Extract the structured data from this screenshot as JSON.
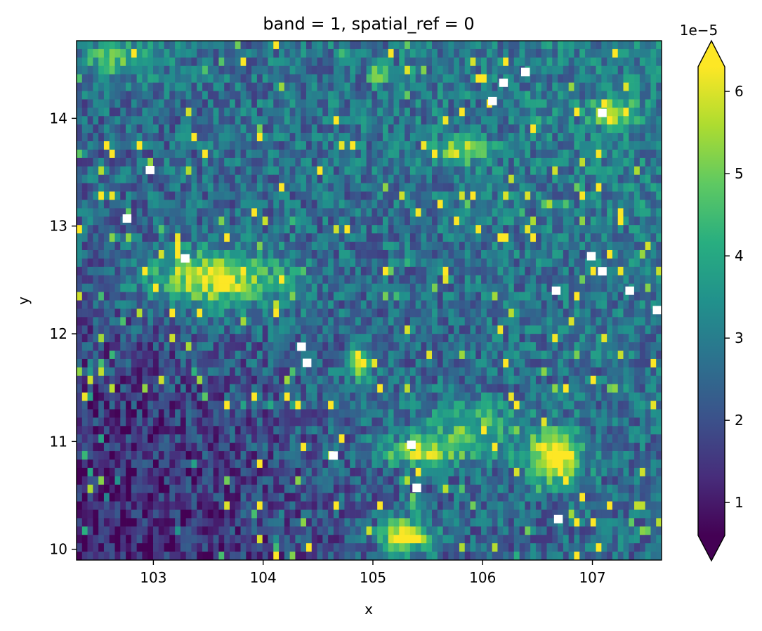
{
  "chart_data": {
    "type": "heatmap",
    "title": "band = 1, spatial_ref = 0",
    "xlabel": "x",
    "ylabel": "y",
    "xlim": [
      102.3,
      107.63
    ],
    "ylim": [
      9.9,
      14.72
    ],
    "x_ticks": [
      {
        "value": 103,
        "label": "103"
      },
      {
        "value": 104,
        "label": "104"
      },
      {
        "value": 105,
        "label": "105"
      },
      {
        "value": 106,
        "label": "106"
      },
      {
        "value": 107,
        "label": "107"
      }
    ],
    "y_ticks": [
      {
        "value": 10,
        "label": "10"
      },
      {
        "value": 11,
        "label": "11"
      },
      {
        "value": 12,
        "label": "12"
      },
      {
        "value": 13,
        "label": "13"
      },
      {
        "value": 14,
        "label": "14"
      }
    ],
    "colorbar": {
      "colormap": "viridis",
      "extend": "both",
      "multiplier_label": "1e−5",
      "vmin": 0.6,
      "vmax": 6.3,
      "ticks": [
        {
          "value": 1,
          "label": "1"
        },
        {
          "value": 2,
          "label": "2"
        },
        {
          "value": 3,
          "label": "3"
        },
        {
          "value": 4,
          "label": "4"
        },
        {
          "value": 5,
          "label": "5"
        },
        {
          "value": 6,
          "label": "6"
        }
      ]
    },
    "grid": {
      "nx": 107,
      "ny": 62
    },
    "background_level": {
      "comment_free_model": true,
      "base": 2.6,
      "gradient_northeast": 0.5,
      "southwest_low": -1.3
    },
    "hotspots": [
      {
        "x": 106.65,
        "y": 10.85,
        "rx": 0.3,
        "ry": 0.3,
        "peak": 7.0
      },
      {
        "x": 104.88,
        "y": 11.72,
        "rx": 0.09,
        "ry": 0.2,
        "peak": 6.8
      },
      {
        "x": 105.3,
        "y": 10.12,
        "rx": 0.28,
        "ry": 0.2,
        "peak": 6.6
      },
      {
        "x": 105.4,
        "y": 10.9,
        "rx": 0.5,
        "ry": 0.15,
        "peak": 5.4
      },
      {
        "x": 103.55,
        "y": 12.5,
        "rx": 0.75,
        "ry": 0.32,
        "peak": 6.0
      },
      {
        "x": 107.2,
        "y": 14.05,
        "rx": 0.25,
        "ry": 0.15,
        "peak": 5.8
      },
      {
        "x": 105.05,
        "y": 14.4,
        "rx": 0.1,
        "ry": 0.1,
        "peak": 5.9
      },
      {
        "x": 105.8,
        "y": 13.7,
        "rx": 0.3,
        "ry": 0.15,
        "peak": 5.2
      },
      {
        "x": 102.7,
        "y": 14.55,
        "rx": 0.45,
        "ry": 0.2,
        "peak": 4.6
      },
      {
        "x": 105.9,
        "y": 11.1,
        "rx": 0.55,
        "ry": 0.3,
        "peak": 4.6
      }
    ],
    "nodata_cells": [
      {
        "x": 102.93,
        "y": 13.52
      },
      {
        "x": 102.72,
        "y": 13.07
      },
      {
        "x": 103.25,
        "y": 12.7
      },
      {
        "x": 104.31,
        "y": 11.88
      },
      {
        "x": 104.36,
        "y": 11.73
      },
      {
        "x": 104.6,
        "y": 10.87
      },
      {
        "x": 105.31,
        "y": 10.97
      },
      {
        "x": 105.36,
        "y": 10.57
      },
      {
        "x": 106.35,
        "y": 14.43
      },
      {
        "x": 106.15,
        "y": 14.33
      },
      {
        "x": 106.05,
        "y": 14.16
      },
      {
        "x": 107.05,
        "y": 14.05
      },
      {
        "x": 106.65,
        "y": 10.28
      },
      {
        "x": 106.63,
        "y": 12.4
      },
      {
        "x": 106.95,
        "y": 12.72
      },
      {
        "x": 107.05,
        "y": 12.58
      },
      {
        "x": 107.3,
        "y": 12.4
      },
      {
        "x": 107.55,
        "y": 12.22
      }
    ]
  }
}
